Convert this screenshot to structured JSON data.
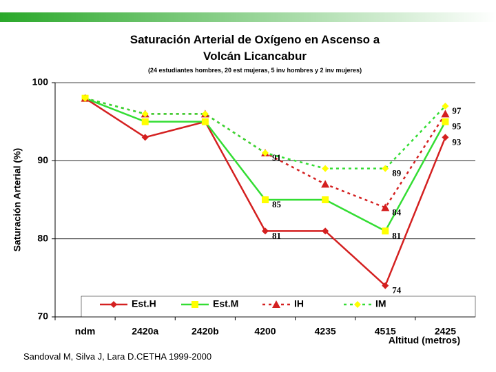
{
  "chart_data": {
    "type": "line",
    "title": "Saturación Arterial de Oxígeno en Ascenso a Volcán Licancabur",
    "subtitle": "(24 estudiantes hombres, 20 est mujeras, 5 inv hombres y 2 inv mujeres)",
    "y_label": "Saturación Arterial (%)",
    "x_label": "Altitud (metros)",
    "source": "Sandoval M, Silva J, Lara D.CETHA 1999-2000",
    "categories": [
      "ndm",
      "2420a",
      "2420b",
      "4200",
      "4235",
      "4515",
      "2425"
    ],
    "series": [
      {
        "name": "Est.H",
        "color": "#d42020",
        "marker": "diamond",
        "marker_color": "#d42020",
        "dashed": false,
        "values": [
          98,
          93,
          95,
          81,
          81,
          74,
          93
        ],
        "value_labels": [
          null,
          null,
          null,
          "81",
          null,
          "74",
          "93"
        ]
      },
      {
        "name": "Est.M",
        "color": "#33dd33",
        "marker": "square",
        "marker_color": "#ffff00",
        "dashed": false,
        "values": [
          98,
          95,
          95,
          85,
          85,
          81,
          95
        ],
        "value_labels": [
          null,
          null,
          null,
          "85",
          null,
          "81",
          "95"
        ]
      },
      {
        "name": "IH",
        "color": "#d42020",
        "marker": "triangle",
        "marker_color": "#d42020",
        "dashed": true,
        "values": [
          98,
          96,
          96,
          91,
          87,
          84,
          96
        ],
        "value_labels": [
          null,
          null,
          null,
          null,
          null,
          "84",
          null
        ]
      },
      {
        "name": "IM",
        "color": "#33dd33",
        "marker": "diamond",
        "marker_color": "#ffff00",
        "dashed": true,
        "values": [
          98,
          96,
          96,
          91,
          89,
          89,
          97
        ],
        "value_labels": [
          null,
          null,
          null,
          "91",
          null,
          "89",
          "97"
        ]
      }
    ],
    "ylim": [
      70,
      100
    ],
    "yticks": [
      70,
      80,
      90,
      100
    ],
    "grid": true
  }
}
